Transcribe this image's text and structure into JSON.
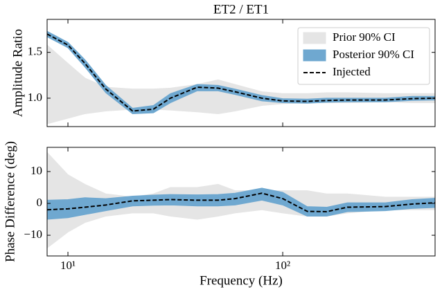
{
  "chart_data": [
    {
      "type": "band",
      "title": "ET2 / ET1",
      "ylabel": "Amplitude Ratio",
      "xscale": "log",
      "legend": "upper right",
      "xlim": [
        8,
        512
      ],
      "xticks": [
        10,
        100
      ],
      "ylim": [
        0.69,
        1.86
      ],
      "yticks": [
        {
          "value": 1.0,
          "label": "1.0"
        },
        {
          "value": 1.5,
          "label": "1.5"
        }
      ],
      "x": [
        8,
        10,
        12,
        15,
        20,
        25,
        30,
        40,
        50,
        60,
        80,
        100,
        130,
        160,
        200,
        300,
        400,
        512
      ],
      "series": [
        {
          "name": "Prior 90% CI",
          "color": "#e5e5e5",
          "kind": "band",
          "lower": [
            0.72,
            0.78,
            0.83,
            0.86,
            0.88,
            0.88,
            0.87,
            0.85,
            0.83,
            0.86,
            0.92,
            0.94,
            0.95,
            0.95,
            0.95,
            0.96,
            0.95,
            0.95
          ],
          "upper": [
            1.58,
            1.38,
            1.22,
            1.12,
            1.1,
            1.1,
            1.11,
            1.15,
            1.2,
            1.15,
            1.07,
            1.05,
            1.05,
            1.06,
            1.06,
            1.05,
            1.05,
            1.05
          ]
        },
        {
          "name": "Posterior 90% CI",
          "color": "#6fa8d0",
          "kind": "band",
          "lower": [
            1.67,
            1.55,
            1.34,
            1.06,
            0.83,
            0.84,
            0.95,
            1.08,
            1.08,
            1.04,
            0.97,
            0.95,
            0.945,
            0.955,
            0.96,
            0.96,
            0.975,
            0.98
          ],
          "upper": [
            1.73,
            1.61,
            1.42,
            1.14,
            0.89,
            0.92,
            1.05,
            1.15,
            1.14,
            1.1,
            1.03,
            0.995,
            0.99,
            1.0,
            1.0,
            1.0,
            1.02,
            1.02
          ]
        },
        {
          "name": "Injected",
          "color": "#000000",
          "kind": "dashed",
          "values": [
            1.7,
            1.58,
            1.38,
            1.1,
            0.86,
            0.88,
            1.0,
            1.12,
            1.11,
            1.07,
            1.0,
            0.97,
            0.965,
            0.975,
            0.98,
            0.98,
            0.995,
            1.0
          ]
        }
      ]
    },
    {
      "type": "band",
      "ylabel": "Phase Difference (deg)",
      "xlabel": "Frequency (Hz)",
      "xscale": "log",
      "xlim": [
        8,
        512
      ],
      "xticks": [
        {
          "value": 10,
          "label": "10¹"
        },
        {
          "value": 100,
          "label": "10²"
        }
      ],
      "ylim": [
        -16.5,
        17.6
      ],
      "yticks": [
        {
          "value": -10,
          "label": "−10"
        },
        0,
        10
      ],
      "x": [
        8,
        10,
        12,
        15,
        20,
        25,
        30,
        40,
        50,
        60,
        80,
        100,
        130,
        160,
        200,
        300,
        400,
        512
      ],
      "series": [
        {
          "color": "#e5e5e5",
          "kind": "band",
          "lower": [
            -14,
            -9,
            -6,
            -4,
            -3,
            -3,
            -4,
            -5,
            -4,
            -3,
            -2,
            -3,
            -4,
            -4,
            -3,
            -2,
            -2,
            -2
          ],
          "upper": [
            16,
            9,
            6,
            3,
            2,
            3,
            5,
            5,
            6,
            4,
            4,
            4,
            4,
            3,
            3,
            2,
            2,
            2
          ]
        },
        {
          "color": "#6fa8d0",
          "kind": "band",
          "lower": [
            -5,
            -4.5,
            -3.5,
            -2.3,
            -0.8,
            -0.6,
            -0.5,
            -0.8,
            -0.8,
            -0.5,
            1.0,
            -0.5,
            -4.0,
            -4.0,
            -2.6,
            -2.3,
            -1.6,
            -1.3
          ],
          "upper": [
            1,
            1.2,
            1.8,
            1.5,
            2.3,
            2.6,
            2.8,
            2.7,
            2.8,
            3.2,
            4.8,
            3.5,
            -1.0,
            -1.2,
            0.2,
            0.2,
            1.2,
            1.6
          ]
        },
        {
          "color": "#000000",
          "kind": "dashed",
          "values": [
            -2,
            -1.7,
            -1.2,
            -0.5,
            0.8,
            1.0,
            1.2,
            1.0,
            1.0,
            1.5,
            3.2,
            1.5,
            -2.5,
            -2.6,
            -1.2,
            -1.0,
            -0.2,
            0.2
          ]
        }
      ]
    }
  ]
}
